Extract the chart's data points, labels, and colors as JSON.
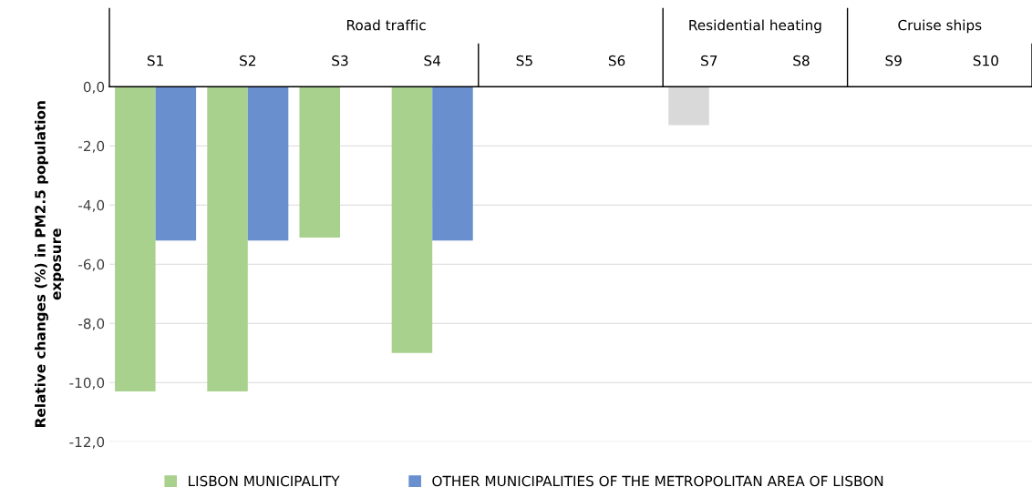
{
  "chart_data": {
    "type": "bar",
    "ylabel": "Relative changes (%) in PM2.5 population\nexposure",
    "categories": [
      "S1",
      "S2",
      "S3",
      "S4",
      "S5",
      "S6",
      "S7",
      "S8",
      "S9",
      "S10"
    ],
    "series": [
      {
        "name": "LISBON MUNICIPALITY",
        "color": "#a9d18e",
        "colors": [
          "#a9d18e",
          "#a9d18e",
          "#a9d18e",
          "#a9d18e",
          "#a9d18e",
          "#a9d18e",
          "#d9d9d9",
          "#a9d18e",
          "#a9d18e",
          "#a9d18e"
        ],
        "values": [
          -10.3,
          -10.3,
          -5.1,
          -9.0,
          null,
          null,
          -1.3,
          null,
          null,
          null
        ]
      },
      {
        "name": "OTHER MUNICIPALITIES OF THE METROPOLITAN AREA OF LISBON",
        "color": "#6a8fcf",
        "values": [
          -5.2,
          -5.2,
          null,
          -5.2,
          null,
          null,
          null,
          null,
          null,
          null
        ]
      }
    ],
    "annotations": [
      "Road traffic",
      "Residential heating",
      "Cruise ships"
    ],
    "ylim": [
      -12,
      0
    ],
    "yticks": [
      {
        "value": -12,
        "label": "-12,0"
      },
      {
        "value": -10,
        "label": "-10,0"
      },
      {
        "value": -8,
        "label": "-8,0"
      },
      {
        "value": -6,
        "label": "-6,0"
      },
      {
        "value": -4,
        "label": "-4,0"
      },
      {
        "value": -2,
        "label": "-2,0"
      },
      {
        "value": 0,
        "label": "0,0"
      }
    ],
    "grid": "y",
    "legend": "bottom"
  }
}
